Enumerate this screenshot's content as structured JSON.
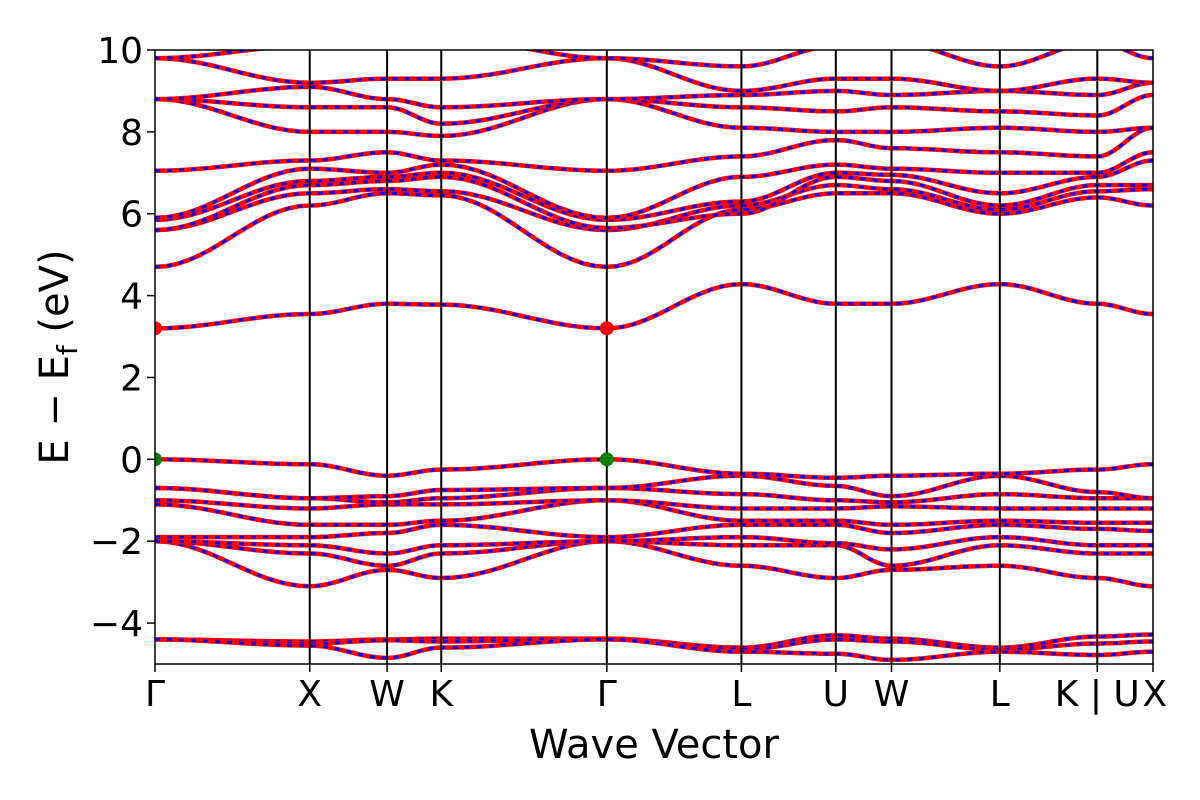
{
  "chart_data": {
    "type": "line",
    "xlabel": "Wave Vector",
    "ylabel": "E − E",
    "ylabel_sub": "f",
    "ylabel_unit": " (eV)",
    "ylim": [
      -5,
      10
    ],
    "y_ticks": [
      -4,
      -2,
      0,
      2,
      4,
      6,
      8,
      10
    ],
    "y_tick_labels": [
      "−4",
      "−2",
      "0",
      "2",
      "4",
      "6",
      "8",
      "10"
    ],
    "xlim": [
      0,
      6.45
    ],
    "k_points": [
      {
        "label": "Γ",
        "x": 0
      },
      {
        "label": "X",
        "x": 1.0
      },
      {
        "label": "W",
        "x": 1.5
      },
      {
        "label": "K",
        "x": 1.85
      },
      {
        "label": "Γ",
        "x": 2.92
      },
      {
        "label": "L",
        "x": 3.79
      },
      {
        "label": "U",
        "x": 4.4
      },
      {
        "label": "W",
        "x": 4.76
      },
      {
        "label": "L",
        "x": 5.46
      },
      {
        "label": "K | U",
        "x": 6.09
      },
      {
        "label": "X",
        "x": 6.45
      }
    ],
    "band_style": {
      "solid_color": "#ff0000",
      "dashed_color": "#0000ff"
    },
    "bands": [
      {
        "e": [
          -4.4,
          -4.45,
          -4.4,
          -4.38,
          -4.38,
          -4.6,
          -4.3,
          -4.38,
          -4.6,
          -4.33,
          -4.28
        ]
      },
      {
        "e": [
          -4.4,
          -4.5,
          -4.42,
          -4.45,
          -4.38,
          -4.65,
          -4.4,
          -4.45,
          -4.65,
          -4.5,
          -4.45
        ]
      },
      {
        "e": [
          -4.4,
          -4.55,
          -4.85,
          -4.6,
          -4.4,
          -4.7,
          -4.75,
          -4.9,
          -4.7,
          -4.78,
          -4.7
        ]
      },
      {
        "e": [
          -2.0,
          -3.1,
          -2.7,
          -2.9,
          -2.0,
          -2.6,
          -2.9,
          -2.7,
          -2.6,
          -2.9,
          -3.1
        ]
      },
      {
        "e": [
          -2.0,
          -2.3,
          -2.6,
          -2.3,
          -2.0,
          -2.1,
          -2.1,
          -2.6,
          -2.1,
          -2.3,
          -2.3
        ]
      },
      {
        "e": [
          -2.0,
          -2.1,
          -2.3,
          -2.1,
          -2.0,
          -1.9,
          -2.05,
          -2.2,
          -1.9,
          -2.1,
          -2.1
        ]
      },
      {
        "e": [
          -1.9,
          -1.9,
          -1.8,
          -1.6,
          -1.9,
          -1.6,
          -1.6,
          -1.8,
          -1.6,
          -1.7,
          -1.75
        ]
      },
      {
        "e": [
          -1.1,
          -1.6,
          -1.6,
          -1.5,
          -1.0,
          -1.5,
          -1.5,
          -1.6,
          -1.5,
          -1.55,
          -1.55
        ]
      },
      {
        "e": [
          -1.0,
          -1.2,
          -1.1,
          -1.1,
          -1.0,
          -1.2,
          -1.2,
          -1.15,
          -1.2,
          -1.2,
          -1.2
        ]
      },
      {
        "e": [
          -0.7,
          -0.95,
          -1.05,
          -0.95,
          -0.7,
          -0.85,
          -1.0,
          -1.05,
          -0.85,
          -0.95,
          -0.95
        ]
      },
      {
        "e": [
          -0.7,
          -0.95,
          -0.9,
          -0.75,
          -0.7,
          -0.4,
          -0.65,
          -0.9,
          -0.4,
          -0.8,
          -0.95
        ]
      },
      {
        "e": [
          0.0,
          -0.12,
          -0.4,
          -0.25,
          0.0,
          -0.35,
          -0.45,
          -0.4,
          -0.35,
          -0.25,
          -0.12
        ]
      },
      {
        "e": [
          3.2,
          3.55,
          3.8,
          3.78,
          3.2,
          4.28,
          3.8,
          3.8,
          4.28,
          3.8,
          3.55
        ]
      },
      {
        "e": [
          4.7,
          6.2,
          6.5,
          6.45,
          4.7,
          6.1,
          6.5,
          6.5,
          6.0,
          6.4,
          6.2
        ]
      },
      {
        "e": [
          5.6,
          6.5,
          6.6,
          6.55,
          5.6,
          6.2,
          6.7,
          6.6,
          6.1,
          6.55,
          6.6
        ]
      },
      {
        "e": [
          5.6,
          6.7,
          6.8,
          6.9,
          5.65,
          6.0,
          6.9,
          6.8,
          6.2,
          6.7,
          6.7
        ]
      },
      {
        "e": [
          5.85,
          6.8,
          6.9,
          7.0,
          5.85,
          6.3,
          7.0,
          6.95,
          6.5,
          6.9,
          7.3
        ]
      },
      {
        "e": [
          5.9,
          7.1,
          7.0,
          7.2,
          5.9,
          6.9,
          7.2,
          7.1,
          7.0,
          7.0,
          7.5
        ]
      },
      {
        "e": [
          7.05,
          7.3,
          7.5,
          7.3,
          7.05,
          7.4,
          7.8,
          7.6,
          7.5,
          7.4,
          8.1
        ]
      },
      {
        "e": [
          8.8,
          8.0,
          8.0,
          7.9,
          8.8,
          8.1,
          8.0,
          8.0,
          8.1,
          8.0,
          8.1
        ]
      },
      {
        "e": [
          8.8,
          8.6,
          8.6,
          8.2,
          8.8,
          8.6,
          8.5,
          8.6,
          8.5,
          8.4,
          8.9
        ]
      },
      {
        "e": [
          8.8,
          9.1,
          8.8,
          8.6,
          8.8,
          8.9,
          9.0,
          8.9,
          9.0,
          8.9,
          9.2
        ]
      },
      {
        "e": [
          9.8,
          9.2,
          9.3,
          9.3,
          9.8,
          9.0,
          9.3,
          9.3,
          9.0,
          9.3,
          9.2
        ]
      },
      {
        "e": [
          9.8,
          10.1,
          10.2,
          10.3,
          9.8,
          9.6,
          10.1,
          10.2,
          9.6,
          10.2,
          9.8
        ]
      }
    ],
    "markers": [
      {
        "x": 0,
        "e": 3.2,
        "color": "#ff0000"
      },
      {
        "x": 2.92,
        "e": 3.2,
        "color": "#ff0000"
      },
      {
        "x": 0,
        "e": 0.0,
        "color": "#008000"
      },
      {
        "x": 2.92,
        "e": 0.0,
        "color": "#008000"
      }
    ],
    "grid": false
  }
}
